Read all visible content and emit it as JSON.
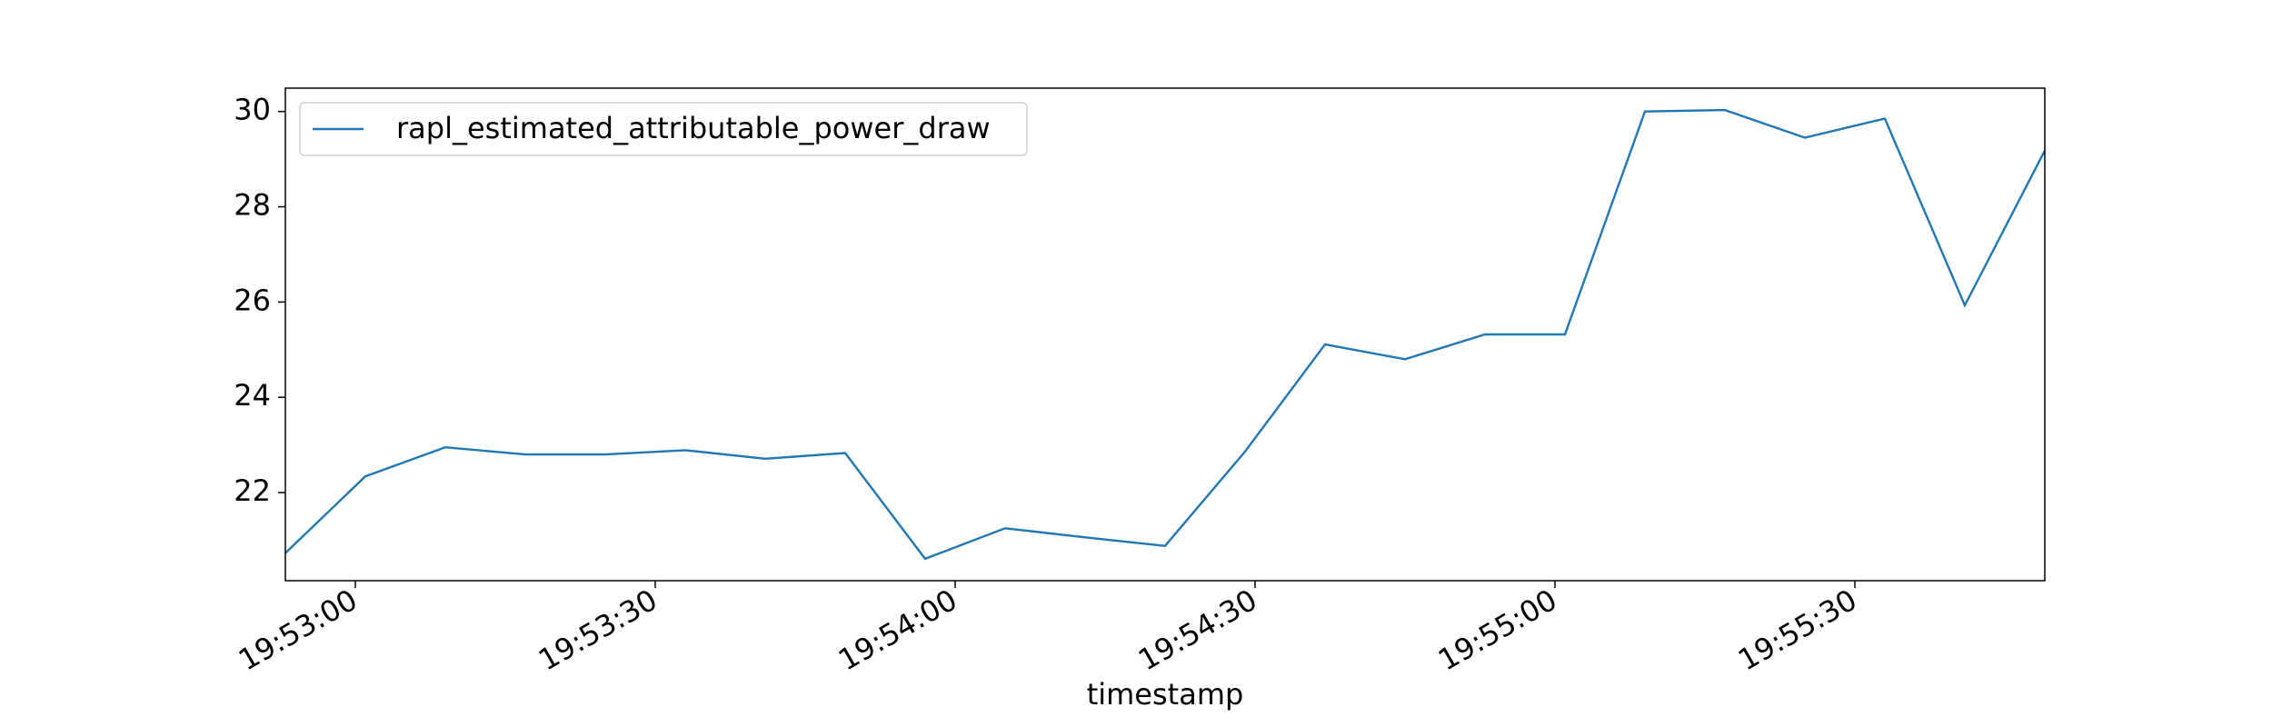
{
  "chart_data": {
    "type": "line",
    "x_label": "timestamp",
    "x": [
      "19:52:53",
      "19:53:01",
      "19:53:09",
      "19:53:17",
      "19:53:25",
      "19:53:33",
      "19:53:41",
      "19:53:49",
      "19:53:57",
      "19:54:05",
      "19:54:13",
      "19:54:21",
      "19:54:29",
      "19:54:37",
      "19:54:45",
      "19:54:53",
      "19:55:01",
      "19:55:09",
      "19:55:17",
      "19:55:25",
      "19:55:33",
      "19:55:41",
      "19:55:49"
    ],
    "series": [
      {
        "name": "rapl_estimated_attributable_power_draw",
        "color": "#1f77b4",
        "values": [
          20.73,
          22.34,
          22.95,
          22.8,
          22.8,
          22.89,
          22.71,
          22.83,
          20.61,
          21.25,
          21.06,
          20.88,
          22.86,
          25.11,
          24.8,
          25.32,
          25.32,
          30.0,
          30.03,
          29.45,
          29.85,
          25.93,
          29.18
        ]
      }
    ],
    "xlim": [
      "19:52:53",
      "19:55:49"
    ],
    "xticks": [
      "19:53:00",
      "19:53:30",
      "19:54:00",
      "19:54:30",
      "19:55:00",
      "19:55:30"
    ],
    "ylim": [
      20.15,
      30.49
    ],
    "yticks": [
      22,
      24,
      26,
      28,
      30
    ],
    "grid": false,
    "legend": "upper left"
  }
}
